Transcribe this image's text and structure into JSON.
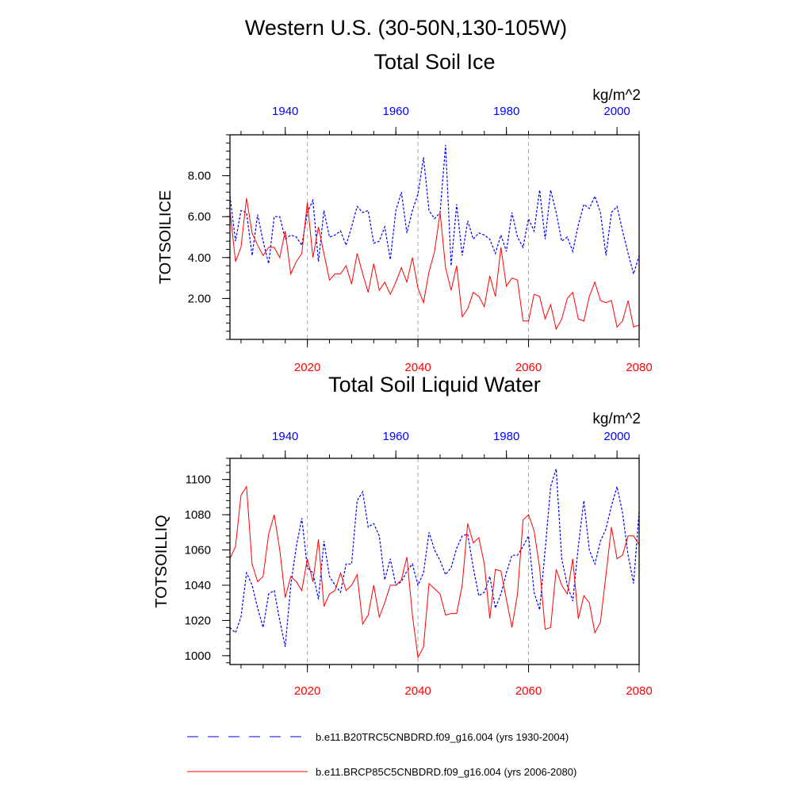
{
  "header": {
    "main_title": "Western U.S. (30-50N,130-105W)"
  },
  "colors": {
    "historical": "#0000ff",
    "future": "#ff0000",
    "grid": "#aaaaaa"
  },
  "legend": {
    "items": [
      {
        "label": "b.e11.B20TRC5CNBDRD.f09_g16.004 (yrs 1930-2004)",
        "style": "dashed",
        "color": "#0000ff"
      },
      {
        "label": "b.e11.BRCP85C5CNBDRD.f09_g16.004 (yrs 2006-2080)",
        "style": "solid",
        "color": "#ff0000"
      }
    ]
  },
  "chart_data": [
    {
      "type": "line",
      "title": "Total Soil Ice",
      "ylabel": "TOTSOILICE",
      "units": "kg/m^2",
      "ylim": [
        0,
        10
      ],
      "yticks": [
        2,
        4,
        6,
        8
      ],
      "ytick_labels": [
        "2.00",
        "4.00",
        "6.00",
        "8.00"
      ],
      "x_bottom": {
        "lim": [
          2006,
          2080
        ],
        "ticks": [
          2020,
          2040,
          2060,
          2080
        ],
        "labels": [
          "2020",
          "2040",
          "2060",
          "2080"
        ]
      },
      "x_top": {
        "lim": [
          1930,
          2004
        ],
        "ticks": [
          1940,
          1960,
          1980,
          2000
        ],
        "labels": [
          "1940",
          "1960",
          "1980",
          "2000"
        ]
      },
      "grid_x": [
        2020,
        2040,
        2060
      ],
      "series": [
        {
          "name": "b.e11.B20TRC5CNBDRD.f09_g16.004 (yrs 1930-2004)",
          "axis": "top",
          "x_start": 1930,
          "style": "dashed",
          "values": [
            7.0,
            4.8,
            6.3,
            6.2,
            4.1,
            6.1,
            4.8,
            3.7,
            6.0,
            6.0,
            4.9,
            5.1,
            5.0,
            4.6,
            6.2,
            6.8,
            3.8,
            6.3,
            5.0,
            5.1,
            5.3,
            4.6,
            5.5,
            6.5,
            6.2,
            6.3,
            4.7,
            4.8,
            5.5,
            3.9,
            6.3,
            7.2,
            5.2,
            6.3,
            7.1,
            8.9,
            6.3,
            5.9,
            6.2,
            9.5,
            3.6,
            6.6,
            4.1,
            5.8,
            4.9,
            5.2,
            5.1,
            4.9,
            4.2,
            5.1,
            4.3,
            6.2,
            5.0,
            4.5,
            5.9,
            5.3,
            7.3,
            4.9,
            7.3,
            6.2,
            4.8,
            5.0,
            4.3,
            5.6,
            6.6,
            6.4,
            7.0,
            6.2,
            4.1,
            6.2,
            6.5,
            5.3,
            4.2,
            3.2,
            4.1
          ]
        },
        {
          "name": "b.e11.BRCP85C5CNBDRD.f09_g16.004 (yrs 2006-2080)",
          "axis": "bottom",
          "x_start": 2006,
          "style": "solid",
          "values": [
            6.3,
            3.8,
            4.5,
            6.9,
            5.2,
            4.6,
            4.1,
            4.5,
            4.5,
            4.0,
            5.3,
            3.2,
            3.8,
            4.2,
            6.7,
            4.0,
            5.5,
            4.2,
            2.9,
            3.2,
            3.2,
            3.6,
            2.7,
            4.2,
            3.2,
            2.3,
            3.7,
            2.4,
            2.8,
            2.2,
            2.8,
            3.5,
            2.8,
            4.0,
            2.5,
            1.8,
            3.3,
            4.3,
            6.2,
            3.5,
            2.4,
            3.6,
            1.1,
            1.5,
            2.3,
            2.1,
            1.6,
            3.1,
            2.1,
            4.5,
            2.6,
            3.0,
            2.9,
            0.9,
            0.9,
            2.2,
            2.1,
            1.0,
            1.7,
            0.5,
            1.0,
            2.0,
            2.3,
            1.0,
            0.9,
            2.1,
            2.8,
            1.9,
            1.8,
            1.9,
            0.6,
            0.9,
            1.9,
            0.6,
            0.7
          ]
        }
      ]
    },
    {
      "type": "line",
      "title": "Total Soil Liquid Water",
      "ylabel": "TOTSOILLIQ",
      "units": "kg/m^2",
      "ylim": [
        995,
        1112
      ],
      "yticks": [
        1000,
        1020,
        1040,
        1060,
        1080,
        1100
      ],
      "ytick_labels": [
        "1000",
        "1020",
        "1040",
        "1060",
        "1080",
        "1100"
      ],
      "x_bottom": {
        "lim": [
          2006,
          2080
        ],
        "ticks": [
          2020,
          2040,
          2060,
          2080
        ],
        "labels": [
          "2020",
          "2040",
          "2060",
          "2080"
        ]
      },
      "x_top": {
        "lim": [
          1930,
          2004
        ],
        "ticks": [
          1940,
          1960,
          1980,
          2000
        ],
        "labels": [
          "1940",
          "1960",
          "1980",
          "2000"
        ]
      },
      "grid_x": [
        2020,
        2040,
        2060
      ],
      "series": [
        {
          "name": "b.e11.B20TRC5CNBDRD.f09_g16.004 (yrs 1930-2004)",
          "axis": "top",
          "x_start": 1930,
          "style": "dashed",
          "values": [
            1016,
            1013,
            1022,
            1047,
            1040,
            1027,
            1016,
            1035,
            1037,
            1020,
            1005,
            1040,
            1062,
            1078,
            1050,
            1047,
            1032,
            1065,
            1045,
            1040,
            1036,
            1052,
            1052,
            1088,
            1093,
            1073,
            1075,
            1068,
            1043,
            1055,
            1040,
            1042,
            1048,
            1052,
            1040,
            1047,
            1070,
            1060,
            1054,
            1046,
            1050,
            1061,
            1068,
            1069,
            1050,
            1034,
            1036,
            1045,
            1027,
            1035,
            1047,
            1057,
            1057,
            1062,
            1068,
            1036,
            1026,
            1060,
            1096,
            1106,
            1055,
            1040,
            1031,
            1062,
            1088,
            1060,
            1052,
            1065,
            1072,
            1085,
            1096,
            1081,
            1057,
            1041,
            1082
          ]
        },
        {
          "name": "b.e11.BRCP85C5CNBDRD.f09_g16.004 (yrs 2006-2080)",
          "axis": "bottom",
          "x_start": 2006,
          "style": "solid",
          "values": [
            1055,
            1062,
            1091,
            1096,
            1052,
            1042,
            1045,
            1069,
            1080,
            1060,
            1033,
            1045,
            1042,
            1037,
            1055,
            1042,
            1066,
            1028,
            1035,
            1037,
            1047,
            1037,
            1040,
            1046,
            1018,
            1023,
            1040,
            1022,
            1030,
            1040,
            1040,
            1043,
            1056,
            1023,
            999,
            1005,
            1041,
            1038,
            1035,
            1023,
            1024,
            1024,
            1040,
            1075,
            1064,
            1067,
            1052,
            1021,
            1049,
            1048,
            1032,
            1016,
            1035,
            1077,
            1080,
            1071,
            1050,
            1015,
            1016,
            1049,
            1040,
            1035,
            1055,
            1021,
            1034,
            1030,
            1013,
            1019,
            1046,
            1073,
            1055,
            1057,
            1068,
            1068,
            1063
          ]
        }
      ]
    }
  ]
}
